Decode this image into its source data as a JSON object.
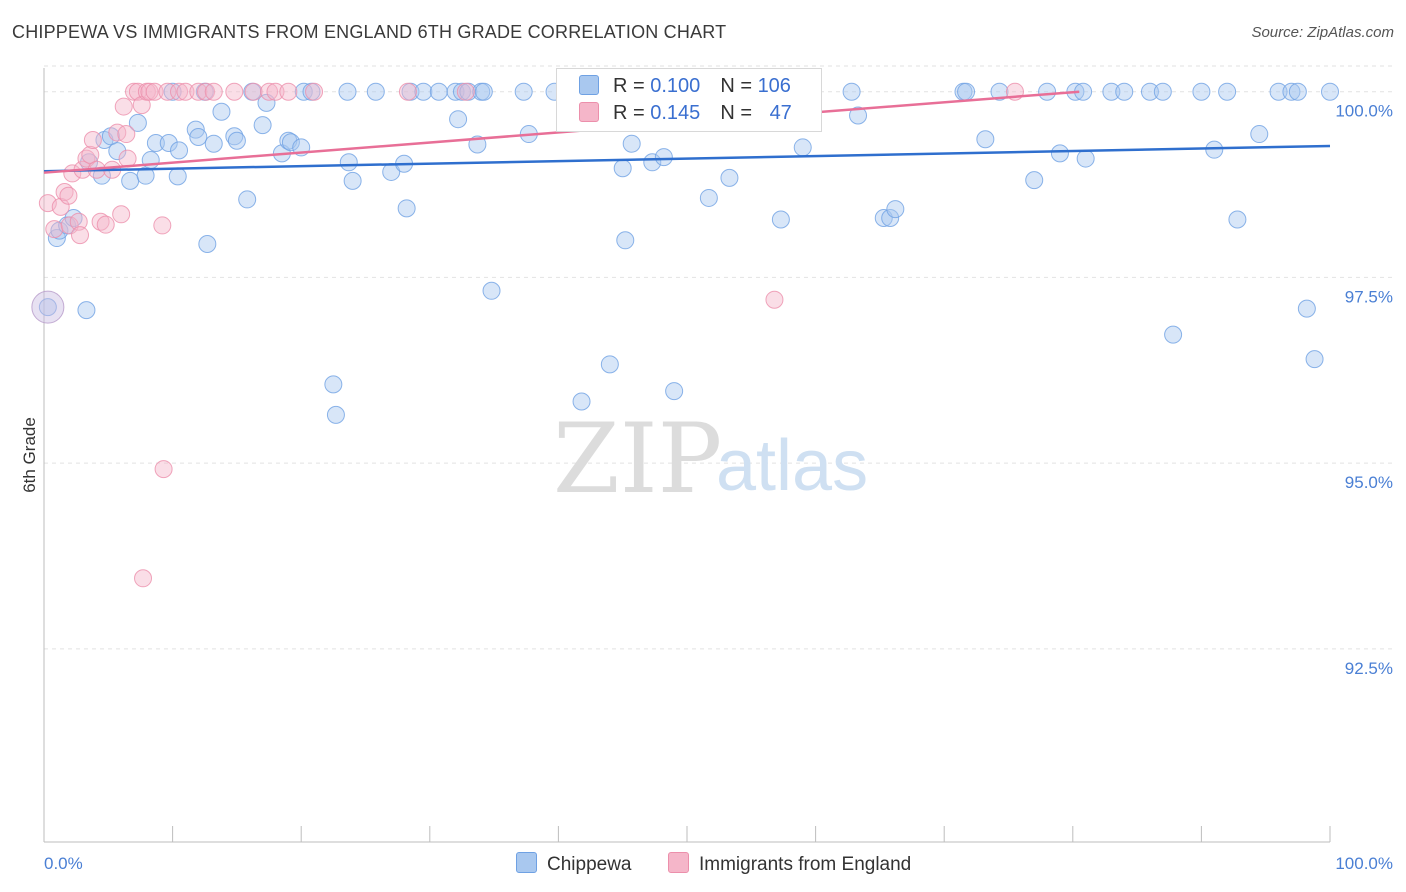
{
  "header": {
    "title": "CHIPPEWA VS IMMIGRANTS FROM ENGLAND 6TH GRADE CORRELATION CHART",
    "source": "Source: ZipAtlas.com"
  },
  "watermark": {
    "zip": "ZIP",
    "atlas": "atlas"
  },
  "legend_top": {
    "rows": [
      {
        "r_label": "R = ",
        "r_value": "0.100",
        "n_label": "N = ",
        "n_value": "106",
        "color": "#a9c8ef"
      },
      {
        "r_label": "R = ",
        "r_value": "0.145",
        "n_label": "N = ",
        "n_value": "47",
        "color": "#f5b6c9"
      }
    ]
  },
  "legend_bottom": {
    "items": [
      {
        "label": "Chippewa",
        "color": "#a9c8ef"
      },
      {
        "label": "Immigrants from England",
        "color": "#f5b6c9"
      }
    ]
  },
  "chart_data": {
    "type": "scatter",
    "title": "CHIPPEWA VS IMMIGRANTS FROM ENGLAND 6TH GRADE CORRELATION CHART",
    "xlabel": "",
    "ylabel": "6th Grade",
    "xlim": [
      0,
      100
    ],
    "ylim": [
      89.9,
      100.4
    ],
    "y_ticks": [
      {
        "value": 100.0,
        "label": "100.0%"
      },
      {
        "value": 97.5,
        "label": "97.5%"
      },
      {
        "value": 95.0,
        "label": "95.0%"
      },
      {
        "value": 92.5,
        "label": "92.5%"
      }
    ],
    "x_tick_labels": [
      {
        "value": 0,
        "label": "0.0%"
      },
      {
        "value": 100,
        "label": "100.0%"
      }
    ],
    "x_minor_ticks": [
      0,
      10,
      20,
      30,
      40,
      50,
      60,
      70,
      80,
      90,
      100
    ],
    "grid": true,
    "legend_position": "top-center",
    "series": [
      {
        "name": "Chippewa",
        "color": "#6fa1e3",
        "fill": "#a9c8ef",
        "r": 0.1,
        "n": 106,
        "trend": {
          "x0": 0,
          "y0": 98.93,
          "x1": 100,
          "y1": 99.27
        },
        "points": [
          [
            1.0,
            98.03
          ],
          [
            1.2,
            98.13
          ],
          [
            1.8,
            98.2
          ],
          [
            2.3,
            98.3
          ],
          [
            3.3,
            97.06
          ],
          [
            3.5,
            99.05
          ],
          [
            4.5,
            98.87
          ],
          [
            4.7,
            99.35
          ],
          [
            5.2,
            99.4
          ],
          [
            5.7,
            99.2
          ],
          [
            6.7,
            98.8
          ],
          [
            7.3,
            99.58
          ],
          [
            7.9,
            98.87
          ],
          [
            8.3,
            99.08
          ],
          [
            8.7,
            99.31
          ],
          [
            9.7,
            99.31
          ],
          [
            10.4,
            98.86
          ],
          [
            10.5,
            99.21
          ],
          [
            10.0,
            100.0
          ],
          [
            11.8,
            99.49
          ],
          [
            12.0,
            99.39
          ],
          [
            12.5,
            100.0
          ],
          [
            12.7,
            97.95
          ],
          [
            13.2,
            99.3
          ],
          [
            13.8,
            99.73
          ],
          [
            14.8,
            99.4
          ],
          [
            15.0,
            99.34
          ],
          [
            15.8,
            98.55
          ],
          [
            16.2,
            100.0
          ],
          [
            17.0,
            99.55
          ],
          [
            17.3,
            99.85
          ],
          [
            18.5,
            99.17
          ],
          [
            19.0,
            99.34
          ],
          [
            19.2,
            99.32
          ],
          [
            20.0,
            99.25
          ],
          [
            20.2,
            100.0
          ],
          [
            20.8,
            100.0
          ],
          [
            22.5,
            96.06
          ],
          [
            22.7,
            95.65
          ],
          [
            23.7,
            99.05
          ],
          [
            24.0,
            98.8
          ],
          [
            23.6,
            100.0
          ],
          [
            25.8,
            100.0
          ],
          [
            27.0,
            98.92
          ],
          [
            28.0,
            99.03
          ],
          [
            28.2,
            98.43
          ],
          [
            28.5,
            100.0
          ],
          [
            29.5,
            100.0
          ],
          [
            30.7,
            100.0
          ],
          [
            32.0,
            100.0
          ],
          [
            32.5,
            100.0
          ],
          [
            32.2,
            99.63
          ],
          [
            33.0,
            100.0
          ],
          [
            33.7,
            99.29
          ],
          [
            34.0,
            100.0
          ],
          [
            34.2,
            100.0
          ],
          [
            34.8,
            97.32
          ],
          [
            37.3,
            100.0
          ],
          [
            37.7,
            99.43
          ],
          [
            39.7,
            100.0
          ],
          [
            41.8,
            95.83
          ],
          [
            43.5,
            100.0
          ],
          [
            44.0,
            96.33
          ],
          [
            45.0,
            98.97
          ],
          [
            45.2,
            98.0
          ],
          [
            45.7,
            99.3
          ],
          [
            47.3,
            99.05
          ],
          [
            47.8,
            100.0
          ],
          [
            48.2,
            99.12
          ],
          [
            49.0,
            95.97
          ],
          [
            51.7,
            98.57
          ],
          [
            53.3,
            98.84
          ],
          [
            53.0,
            100.0
          ],
          [
            54.0,
            100.0
          ],
          [
            55.0,
            100.0
          ],
          [
            57.3,
            98.28
          ],
          [
            58.0,
            100.0
          ],
          [
            59.0,
            99.25
          ],
          [
            62.8,
            100.0
          ],
          [
            63.3,
            99.68
          ],
          [
            65.3,
            98.3
          ],
          [
            65.8,
            98.3
          ],
          [
            66.2,
            98.42
          ],
          [
            71.5,
            100.0
          ],
          [
            71.7,
            100.0
          ],
          [
            73.2,
            99.36
          ],
          [
            74.3,
            100.0
          ],
          [
            77.0,
            98.81
          ],
          [
            78.0,
            100.0
          ],
          [
            79.0,
            99.17
          ],
          [
            80.2,
            100.0
          ],
          [
            80.8,
            100.0
          ],
          [
            81.0,
            99.1
          ],
          [
            83.0,
            100.0
          ],
          [
            84.0,
            100.0
          ],
          [
            86.0,
            100.0
          ],
          [
            87.0,
            100.0
          ],
          [
            87.8,
            96.73
          ],
          [
            90.0,
            100.0
          ],
          [
            91.0,
            99.22
          ],
          [
            92.0,
            100.0
          ],
          [
            92.8,
            98.28
          ],
          [
            94.5,
            99.43
          ],
          [
            96.0,
            100.0
          ],
          [
            97.0,
            100.0
          ],
          [
            97.5,
            100.0
          ],
          [
            98.2,
            97.08
          ],
          [
            98.8,
            96.4
          ],
          [
            100.0,
            100.0
          ],
          [
            0.3,
            97.1
          ]
        ]
      },
      {
        "name": "Immigrants from England",
        "color": "#ec8fab",
        "fill": "#f5b6c9",
        "r": 0.145,
        "n": 47,
        "trend": {
          "x0": 0,
          "y0": 98.91,
          "x1": 80.5,
          "y1": 100.0
        },
        "points": [
          [
            0.3,
            98.5
          ],
          [
            0.8,
            98.15
          ],
          [
            1.3,
            98.45
          ],
          [
            1.6,
            98.65
          ],
          [
            1.9,
            98.6
          ],
          [
            2.0,
            98.2
          ],
          [
            2.2,
            98.9
          ],
          [
            2.7,
            98.25
          ],
          [
            2.8,
            98.07
          ],
          [
            3.0,
            98.95
          ],
          [
            3.3,
            99.1
          ],
          [
            3.6,
            99.15
          ],
          [
            3.8,
            99.35
          ],
          [
            4.1,
            98.95
          ],
          [
            4.4,
            98.25
          ],
          [
            4.8,
            98.21
          ],
          [
            5.3,
            98.95
          ],
          [
            5.7,
            99.45
          ],
          [
            6.0,
            98.35
          ],
          [
            6.2,
            99.8
          ],
          [
            6.4,
            99.43
          ],
          [
            6.5,
            99.1
          ],
          [
            7.0,
            100.0
          ],
          [
            7.3,
            100.0
          ],
          [
            7.6,
            99.82
          ],
          [
            8.0,
            100.0
          ],
          [
            8.2,
            100.0
          ],
          [
            8.6,
            100.0
          ],
          [
            9.2,
            98.2
          ],
          [
            9.6,
            100.0
          ],
          [
            10.5,
            100.0
          ],
          [
            11.0,
            100.0
          ],
          [
            12.0,
            100.0
          ],
          [
            12.6,
            100.0
          ],
          [
            13.2,
            100.0
          ],
          [
            14.8,
            100.0
          ],
          [
            16.3,
            100.0
          ],
          [
            17.5,
            100.0
          ],
          [
            18.0,
            100.0
          ],
          [
            19.0,
            100.0
          ],
          [
            21.0,
            100.0
          ],
          [
            28.3,
            100.0
          ],
          [
            32.8,
            100.0
          ],
          [
            9.3,
            94.92
          ],
          [
            7.7,
            93.45
          ],
          [
            56.8,
            97.2
          ],
          [
            75.5,
            100.0
          ]
        ]
      }
    ]
  }
}
